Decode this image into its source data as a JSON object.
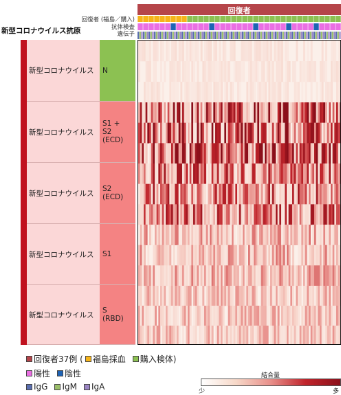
{
  "header": {
    "recovered_title": "回復者",
    "row_labels": [
      "回復者 (福島／購入)",
      "抗体検査",
      "遺伝子"
    ],
    "antigen_title": "新型コロナウイルス抗原"
  },
  "colors": {
    "recovered": "#b5454a",
    "fukushima": "#f6b419",
    "purchased": "#8cc152",
    "positive": "#ea6fe3",
    "negative": "#1e63b5",
    "IgG": "#5b6fb0",
    "IgM": "#9bbf6a",
    "IgA": "#9b86c4"
  },
  "rows": [
    {
      "virus": "新型コロナウイルス",
      "code": "N",
      "color": "#8cc152"
    },
    {
      "virus": "新型コロナウイルス",
      "code": "S1 +\nS2\n(ECD)",
      "color": "#f48383"
    },
    {
      "virus": "新型コロナウイルス",
      "code": "S2\n(ECD)",
      "color": "#f48383"
    },
    {
      "virus": "新型コロナウイルス",
      "code": "S1",
      "color": "#f48383"
    },
    {
      "virus": "新型コロナウイルス",
      "code": "S\n(RBD)",
      "color": "#f48383"
    }
  ],
  "legend": {
    "line1": {
      "a": "回復者37例 (",
      "b": "福島採血",
      "c": "購入検体)"
    },
    "line2": {
      "a": "陽性",
      "b": "陰性"
    },
    "line3": {
      "a": "IgG",
      "b": "IgM",
      "c": "IgA"
    }
  },
  "scale": {
    "title": "結合量",
    "low": "少",
    "high": "多"
  },
  "chart_data": {
    "type": "heatmap",
    "title": "",
    "y_categories": [
      "N",
      "S1 + S2 (ECD)",
      "S2 (ECD)",
      "S1",
      "S (RBD)"
    ],
    "n_cases": 37,
    "source_fukushima_count": 9,
    "value_scale": "少 → 多",
    "intensity_levels": [
      {
        "row": "N",
        "relative_level": 0.1
      },
      {
        "row": "S1 + S2 (ECD)",
        "relative_level": 0.7
      },
      {
        "row": "S2 (ECD)",
        "relative_level": 0.55
      },
      {
        "row": "S1",
        "relative_level": 0.35
      },
      {
        "row": "S (RBD)",
        "relative_level": 0.3
      }
    ]
  }
}
